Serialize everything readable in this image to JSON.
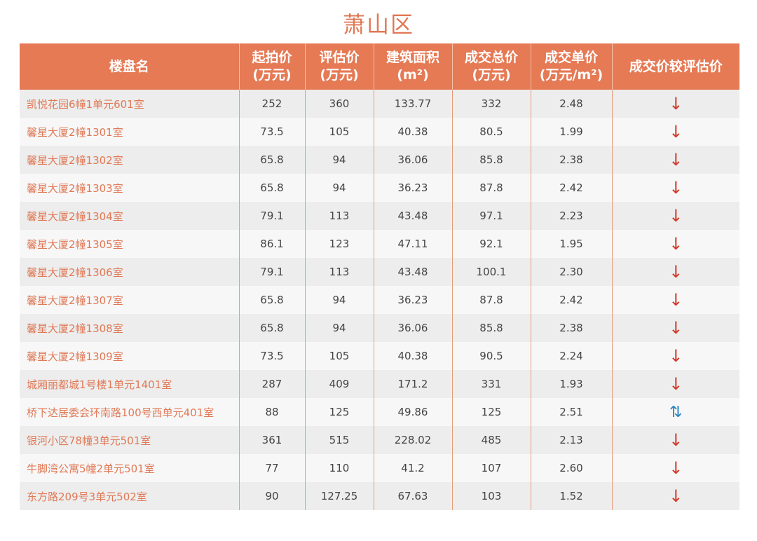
{
  "title": "萧山区",
  "headers": [
    "楼盘名",
    "起拍价\n(万元)",
    "评估价\n(万元)",
    "建筑面积\n(m²)",
    "成交总价\n(万元)",
    "成交单价\n(万元/m²)",
    "成交价较评估价"
  ],
  "colors": {
    "header": "#e57a55",
    "down_arrow": "#d23a2a",
    "updown_arrow": "#2a86c4"
  },
  "rows": [
    [
      "凯悦花园6幢1单元601室",
      "252",
      "360",
      "133.77",
      "332",
      "2.48",
      "↓"
    ],
    [
      "馨星大厦2幢1301室",
      "73.5",
      "105",
      "40.38",
      "80.5",
      "1.99",
      "↓"
    ],
    [
      "馨星大厦2幢1302室",
      "65.8",
      "94",
      "36.06",
      "85.8",
      "2.38",
      "↓"
    ],
    [
      "馨星大厦2幢1303室",
      "65.8",
      "94",
      "36.23",
      "87.8",
      "2.42",
      "↓"
    ],
    [
      "馨星大厦2幢1304室",
      "79.1",
      "113",
      "43.48",
      "97.1",
      "2.23",
      "↓"
    ],
    [
      "馨星大厦2幢1305室",
      "86.1",
      "123",
      "47.11",
      "92.1",
      "1.95",
      "↓"
    ],
    [
      "馨星大厦2幢1306室",
      "79.1",
      "113",
      "43.48",
      "100.1",
      "2.30",
      "↓"
    ],
    [
      "馨星大厦2幢1307室",
      "65.8",
      "94",
      "36.23",
      "87.8",
      "2.42",
      "↓"
    ],
    [
      "馨星大厦2幢1308室",
      "65.8",
      "94",
      "36.06",
      "85.8",
      "2.38",
      "↓"
    ],
    [
      "馨星大厦2幢1309室",
      "73.5",
      "105",
      "40.38",
      "90.5",
      "2.24",
      "↓"
    ],
    [
      "城厢丽都城1号楼1单元1401室",
      "287",
      "409",
      "171.2",
      "331",
      "1.93",
      "↓"
    ],
    [
      "桥下达居委会环南路100号西单元401室",
      "88",
      "125",
      "49.86",
      "125",
      "2.51",
      "⇅"
    ],
    [
      "银河小区78幢3单元501室",
      "361",
      "515",
      "228.02",
      "485",
      "2.13",
      "↓"
    ],
    [
      "牛脚湾公寓5幢2单元501室",
      "77",
      "110",
      "41.2",
      "107",
      "2.60",
      "↓"
    ],
    [
      "东方路209号3单元502室",
      "90",
      "127.25",
      "67.63",
      "103",
      "1.52",
      "↓"
    ]
  ]
}
